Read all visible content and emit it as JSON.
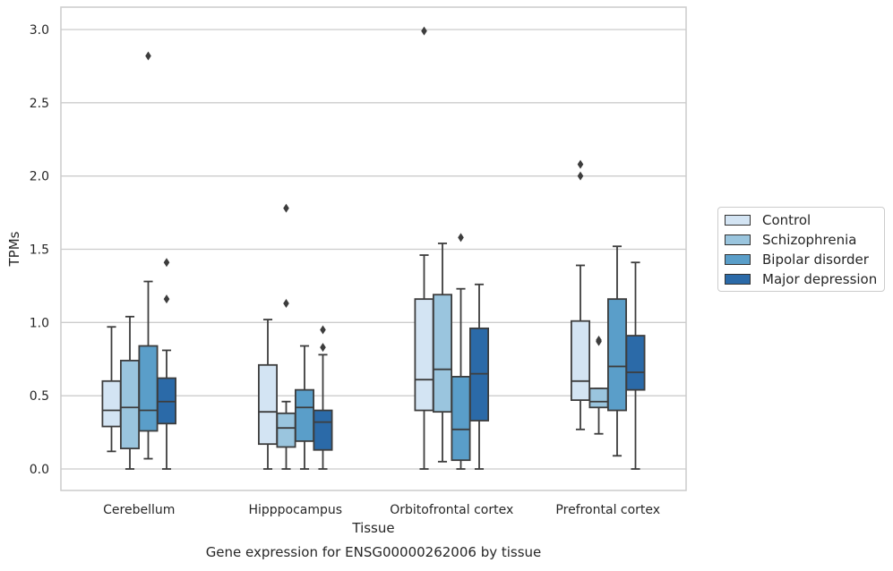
{
  "chart_data": {
    "type": "box",
    "title": "",
    "caption": "Gene expression for ENSG00000262006 by tissue",
    "xlabel": "Tissue",
    "ylabel": "TPMs",
    "ylim": [
      -0.14,
      3.14
    ],
    "yticks": [
      0.0,
      0.5,
      1.0,
      1.5,
      2.0,
      2.5,
      3.0
    ],
    "ytick_labels": [
      "0.0",
      "0.5",
      "1.0",
      "1.5",
      "2.0",
      "2.5",
      "3.0"
    ],
    "grid": true,
    "legend_position": "right",
    "categories": [
      "Cerebellum",
      "Hipppocampus",
      "Orbitofrontal cortex",
      "Prefrontal cortex"
    ],
    "series": [
      {
        "name": "Control",
        "color": "#d3e4f3",
        "boxes": [
          {
            "whisker_low": 0.12,
            "q1": 0.29,
            "median": 0.4,
            "q3": 0.6,
            "whisker_high": 0.97,
            "outliers": []
          },
          {
            "whisker_low": 0.0,
            "q1": 0.17,
            "median": 0.39,
            "q3": 0.71,
            "whisker_high": 1.02,
            "outliers": []
          },
          {
            "whisker_low": 0.0,
            "q1": 0.4,
            "median": 0.61,
            "q3": 1.16,
            "whisker_high": 1.46,
            "outliers": [
              2.99
            ]
          },
          {
            "whisker_low": 0.27,
            "q1": 0.47,
            "median": 0.6,
            "q3": 1.01,
            "whisker_high": 1.39,
            "outliers": [
              2.0,
              2.08
            ]
          }
        ]
      },
      {
        "name": "Schizophrenia",
        "color": "#9ac5de",
        "boxes": [
          {
            "whisker_low": 0.0,
            "q1": 0.14,
            "median": 0.42,
            "q3": 0.74,
            "whisker_high": 1.04,
            "outliers": []
          },
          {
            "whisker_low": 0.0,
            "q1": 0.15,
            "median": 0.28,
            "q3": 0.38,
            "whisker_high": 0.46,
            "outliers": [
              1.13,
              1.78
            ]
          },
          {
            "whisker_low": 0.05,
            "q1": 0.39,
            "median": 0.68,
            "q3": 1.19,
            "whisker_high": 1.54,
            "outliers": []
          },
          {
            "whisker_low": 0.24,
            "q1": 0.42,
            "median": 0.46,
            "q3": 0.55,
            "whisker_high": 0.55,
            "outliers": [
              0.87,
              0.88
            ]
          }
        ]
      },
      {
        "name": "Bipolar disorder",
        "color": "#5a9ec9",
        "boxes": [
          {
            "whisker_low": 0.07,
            "q1": 0.26,
            "median": 0.4,
            "q3": 0.84,
            "whisker_high": 1.28,
            "outliers": [
              2.82
            ]
          },
          {
            "whisker_low": 0.0,
            "q1": 0.19,
            "median": 0.42,
            "q3": 0.54,
            "whisker_high": 0.84,
            "outliers": []
          },
          {
            "whisker_low": 0.0,
            "q1": 0.06,
            "median": 0.27,
            "q3": 0.63,
            "whisker_high": 1.23,
            "outliers": [
              1.58
            ]
          },
          {
            "whisker_low": 0.09,
            "q1": 0.4,
            "median": 0.7,
            "q3": 1.16,
            "whisker_high": 1.52,
            "outliers": []
          }
        ]
      },
      {
        "name": "Major depression",
        "color": "#2b6aa8",
        "boxes": [
          {
            "whisker_low": 0.0,
            "q1": 0.31,
            "median": 0.46,
            "q3": 0.62,
            "whisker_high": 0.81,
            "outliers": [
              1.16,
              1.41
            ]
          },
          {
            "whisker_low": 0.0,
            "q1": 0.13,
            "median": 0.32,
            "q3": 0.4,
            "whisker_high": 0.78,
            "outliers": [
              0.83,
              0.95
            ]
          },
          {
            "whisker_low": 0.0,
            "q1": 0.33,
            "median": 0.65,
            "q3": 0.96,
            "whisker_high": 1.26,
            "outliers": []
          },
          {
            "whisker_low": 0.0,
            "q1": 0.54,
            "median": 0.66,
            "q3": 0.91,
            "whisker_high": 1.41,
            "outliers": []
          }
        ]
      }
    ]
  }
}
